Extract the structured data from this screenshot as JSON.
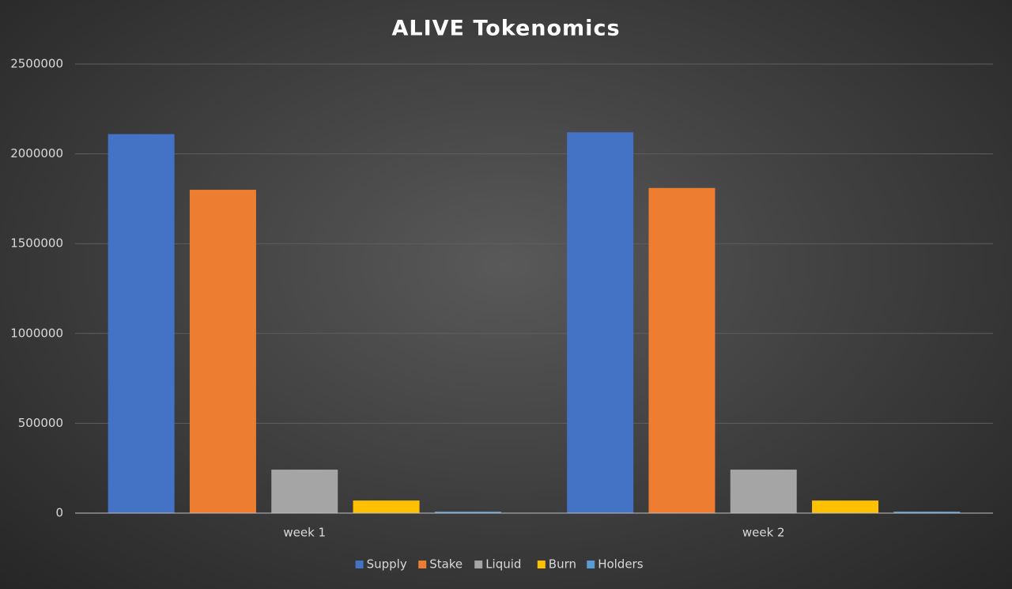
{
  "chart_data": {
    "type": "bar",
    "title": "ALIVE Tokenomics",
    "categories": [
      "week 1",
      "week 2"
    ],
    "series": [
      {
        "name": "Supply",
        "color": "#4472c4",
        "values": [
          2110000,
          2120000
        ]
      },
      {
        "name": "Stake",
        "color": "#ed7d31",
        "values": [
          1800000,
          1810000
        ]
      },
      {
        "name": "Liquid",
        "color": "#a5a5a5",
        "values": [
          242000,
          242000
        ]
      },
      {
        "name": "Burn",
        "color": "#ffc000",
        "values": [
          70000,
          70000
        ]
      },
      {
        "name": "Holders",
        "color": "#5b9bd5",
        "values": [
          8000,
          8000
        ]
      }
    ],
    "ylim": [
      0,
      2500000
    ],
    "yticks": [
      0,
      500000,
      1000000,
      1500000,
      2000000,
      2500000
    ],
    "grid": true,
    "legend": "bottom"
  }
}
